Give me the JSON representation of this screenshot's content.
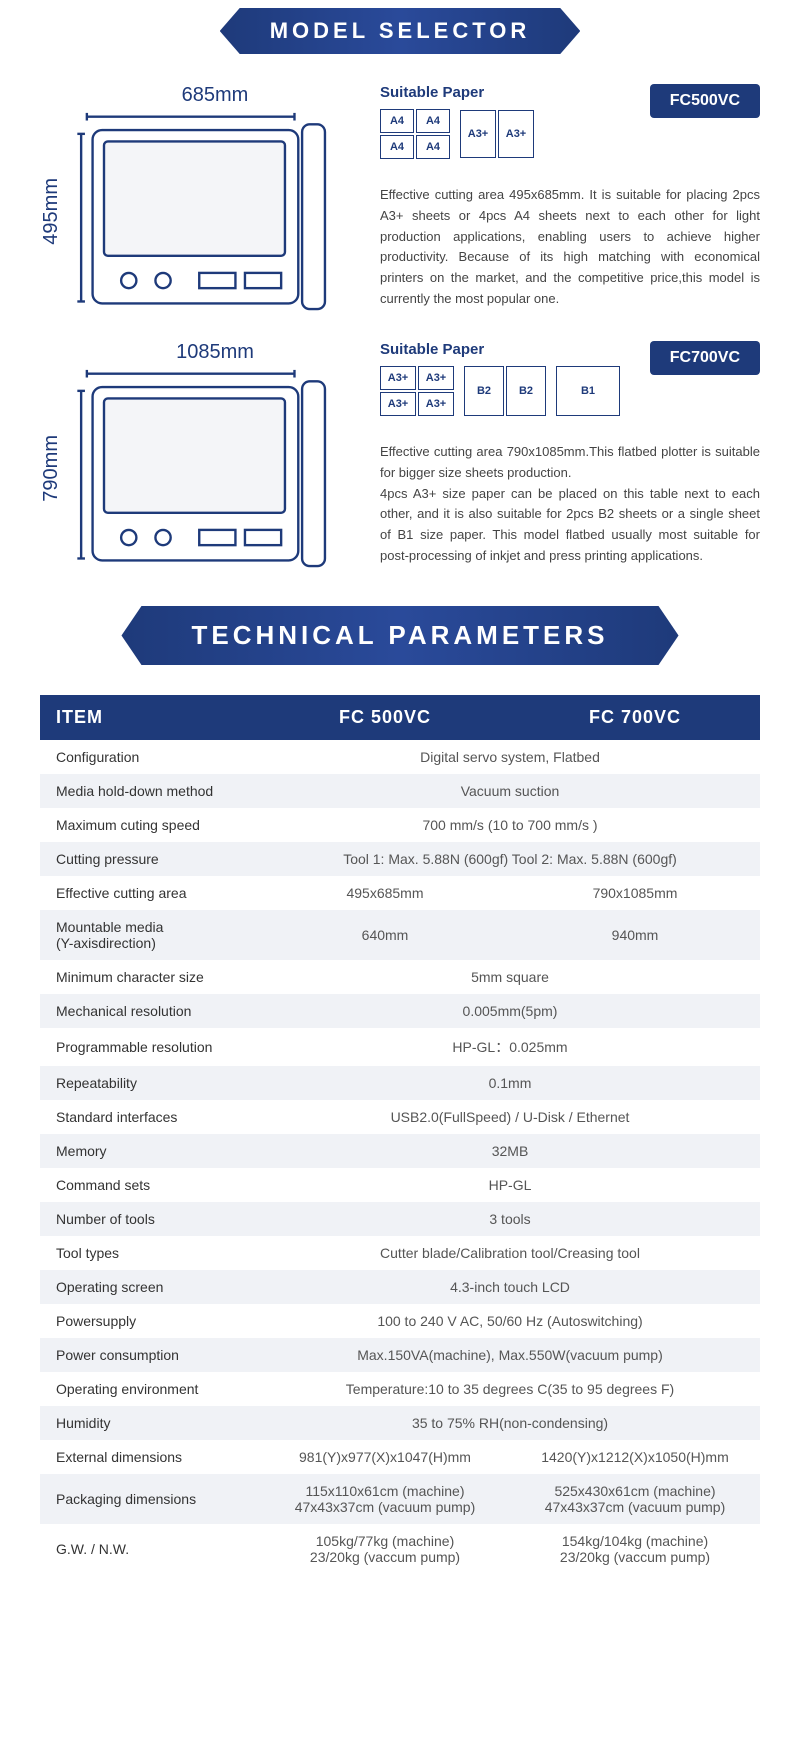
{
  "colors": {
    "primary": "#1e3a7a",
    "text_body": "#444444",
    "table_alt": "#f0f2f6"
  },
  "banner1": "MODEL SELECTOR",
  "banner2": "TECHNICAL PARAMETERS",
  "models": [
    {
      "width_label": "685mm",
      "height_label": "495mm",
      "badge": "FC500VC",
      "suitable_title": "Suitable Paper",
      "papers": {
        "grid2x2": [
          "A4",
          "A4",
          "A4",
          "A4"
        ],
        "pair_tall": [
          "A3+",
          "A3+"
        ]
      },
      "desc": "Effective cutting area 495x685mm. It is suitable for placing 2pcs A3+ sheets or 4pcs A4 sheets next to each other for light production applications, enabling users to achieve higher productivity. Because of its high matching with economical printers on the market, and the competitive price,this model is currently the most popular one."
    },
    {
      "width_label": "1085mm",
      "height_label": "790mm",
      "badge": "FC700VC",
      "suitable_title": "Suitable Paper",
      "papers": {
        "grid2x2": [
          "A3+",
          "A3+",
          "A3+",
          "A3+"
        ],
        "pair_tall": [
          "B2",
          "B2"
        ],
        "single": "B1"
      },
      "desc": "Effective cutting area 790x1085mm.This flatbed plotter is suitable for bigger size sheets production.\n4pcs A3+ size paper can be placed on this table next to each other, and it is also suitable for 2pcs B2 sheets or a single sheet of B1 size paper. This model flatbed usually most suitable for post-processing of inkjet and press printing applications."
    }
  ],
  "table": {
    "headers": [
      "ITEM",
      "FC 500VC",
      "FC 700VC"
    ],
    "rows": [
      {
        "label": "Configuration",
        "span": "Digital servo system, Flatbed"
      },
      {
        "label": "Media hold-down method",
        "span": "Vacuum suction"
      },
      {
        "label": "Maximum cuting speed",
        "span": "700 mm/s (10 to 700 mm/s )"
      },
      {
        "label": "Cutting pressure",
        "span": "Tool 1: Max. 5.88N (600gf)  Tool 2: Max. 5.88N (600gf)"
      },
      {
        "label": "Effective cutting area",
        "a": "495x685mm",
        "b": "790x1085mm"
      },
      {
        "label": "Mountable media\n(Y-axisdirection)",
        "a": "640mm",
        "b": "940mm"
      },
      {
        "label": "Minimum character size",
        "span": "5mm square"
      },
      {
        "label": "Mechanical resolution",
        "span": "0.005mm(5pm)"
      },
      {
        "label": "Programmable resolution",
        "span": "HP-GL：0.025mm"
      },
      {
        "label": "Repeatability",
        "span": "0.1mm"
      },
      {
        "label": "Standard interfaces",
        "span": "USB2.0(FullSpeed) / U-Disk / Ethernet"
      },
      {
        "label": "Memory",
        "span": "32MB"
      },
      {
        "label": "Command sets",
        "span": "HP-GL"
      },
      {
        "label": "Number of tools",
        "span": "3 tools"
      },
      {
        "label": "Tool types",
        "span": "Cutter blade/Calibration tool/Creasing tool"
      },
      {
        "label": "Operating screen",
        "span": "4.3-inch touch LCD"
      },
      {
        "label": "Powersupply",
        "span": "100 to 240 V AC,   50/60 Hz (Autoswitching)"
      },
      {
        "label": "Power consumption",
        "span": "Max.150VA(machine),  Max.550W(vacuum pump)"
      },
      {
        "label": "Operating environment",
        "span": "Temperature:10 to 35 degrees C(35 to 95 degrees F)"
      },
      {
        "label": "Humidity",
        "span": "35 to 75% RH(non-condensing)"
      },
      {
        "label": "External dimensions",
        "a": "981(Y)x977(X)x1047(H)mm",
        "b": "1420(Y)x1212(X)x1050(H)mm"
      },
      {
        "label": "Packaging dimensions",
        "a": "115x110x61cm (machine)\n47x43x37cm (vacuum pump)",
        "b": "525x430x61cm (machine)\n47x43x37cm (vacuum pump)"
      },
      {
        "label": "G.W. / N.W.",
        "a": "105kg/77kg (machine)\n23/20kg (vaccum pump)",
        "b": "154kg/104kg (machine)\n23/20kg (vaccum pump)"
      }
    ]
  }
}
